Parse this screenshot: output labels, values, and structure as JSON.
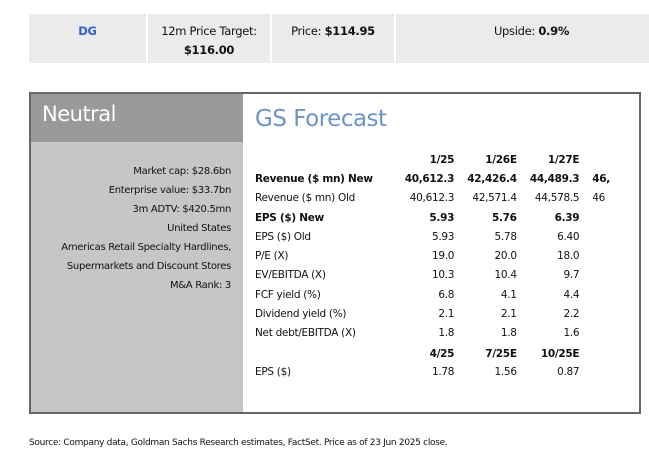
{
  "header": {
    "ticker": "DG",
    "price_target_label": "12m Price Target:",
    "price_target": "$116.00",
    "price_label": "Price:",
    "price": "$114.95",
    "upside_label": "Upside:",
    "upside": "0.9%"
  },
  "rating": "Neutral",
  "info": [
    "Market cap: $28.6bn",
    "Enterprise value: $33.7bn",
    "3m ADTV: $420.5mn",
    "United States",
    "Americas Retail Specialty Hardlines,",
    "Supermarkets and Discount Stores",
    "M&A Rank: 3"
  ],
  "forecast": {
    "title": "GS Forecast",
    "annual_headers": [
      "1/25",
      "1/26E",
      "1/27E",
      ""
    ],
    "rows": [
      {
        "label": "Revenue ($ mn) New",
        "values": [
          "40,612.3",
          "42,426.4",
          "44,489.3",
          "46,"
        ],
        "bold": true
      },
      {
        "label": "Revenue ($ mn) Old",
        "values": [
          "40,612.3",
          "42,571.4",
          "44,578.5",
          "46"
        ]
      },
      {
        "label": "EPS ($) New",
        "values": [
          "5.93",
          "5.76",
          "6.39",
          ""
        ],
        "bold": true
      },
      {
        "label": "EPS ($) Old",
        "values": [
          "5.93",
          "5.78",
          "6.40",
          ""
        ]
      },
      {
        "label": "P/E (X)",
        "values": [
          "19.0",
          "20.0",
          "18.0",
          ""
        ]
      },
      {
        "label": "EV/EBITDA (X)",
        "values": [
          "10.3",
          "10.4",
          "9.7",
          ""
        ]
      },
      {
        "label": "FCF yield (%)",
        "values": [
          "6.8",
          "4.1",
          "4.4",
          ""
        ]
      },
      {
        "label": "Dividend yield (%)",
        "values": [
          "2.1",
          "2.1",
          "2.2",
          ""
        ]
      },
      {
        "label": "Net debt/EBITDA (X)",
        "values": [
          "1.8",
          "1.8",
          "1.6",
          ""
        ]
      }
    ],
    "quarterly_headers": [
      "4/25",
      "7/25E",
      "10/25E"
    ],
    "quarterly_row": {
      "label": "EPS ($)",
      "values": [
        "1.78",
        "1.56",
        "0.87"
      ]
    }
  },
  "footnote": "Source: Company data, Goldman Sachs Research estimates, FactSet. Price as of 23 Jun 2025 close."
}
